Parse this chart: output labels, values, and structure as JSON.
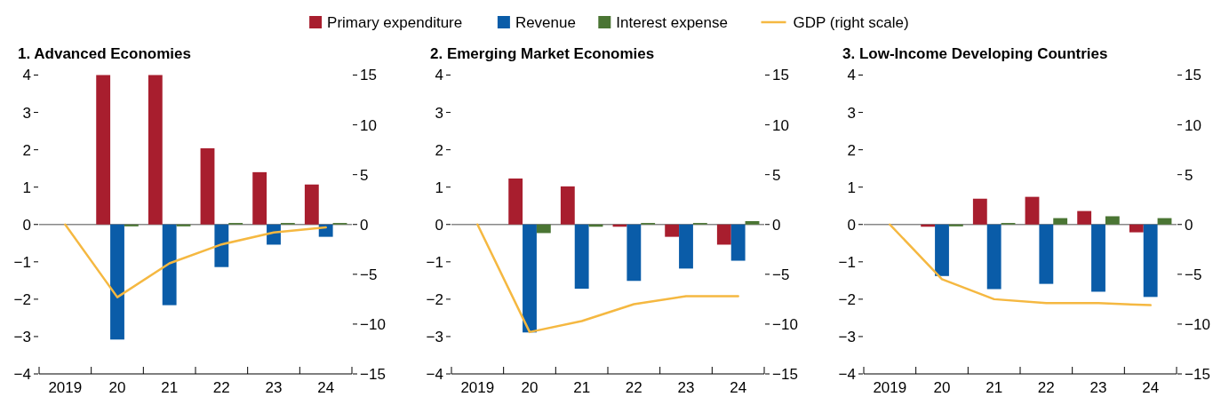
{
  "chart_data": [
    {
      "type": "bar",
      "title": "1. Advanced Economies",
      "categories": [
        "2019",
        "20",
        "21",
        "22",
        "23",
        "24"
      ],
      "legend": "top",
      "series": [
        {
          "name": "Primary expenditure",
          "color": "#a81e2e",
          "values": [
            null,
            4.0,
            4.0,
            2.04,
            1.4,
            1.07
          ]
        },
        {
          "name": "Revenue",
          "color": "#0a5ca8",
          "values": [
            null,
            -3.08,
            -2.16,
            -1.14,
            -0.54,
            -0.33
          ]
        },
        {
          "name": "Interest expense",
          "color": "#4a7533",
          "values": [
            null,
            -0.05,
            -0.05,
            0.04,
            0.04,
            0.04
          ]
        },
        {
          "name": "GDP (right scale)",
          "type": "line",
          "axis": "y2",
          "color": "#f5b841",
          "values": [
            0,
            -7.3,
            -3.9,
            -2.0,
            -0.8,
            -0.3
          ]
        }
      ],
      "ylim": [
        -4,
        4
      ],
      "yticks": [
        {
          "value": -4,
          "label": "−4"
        },
        {
          "value": -3,
          "label": "−3"
        },
        {
          "value": -2,
          "label": "−2"
        },
        {
          "value": -1,
          "label": "−1"
        },
        0,
        1,
        2,
        3,
        4
      ],
      "y2lim": [
        -15,
        15
      ],
      "y2ticks": [
        {
          "value": -15,
          "label": "−15"
        },
        {
          "value": -10,
          "label": "−10"
        },
        {
          "value": -5,
          "label": "−5"
        },
        0,
        5,
        10,
        15
      ]
    },
    {
      "type": "bar",
      "title": "2. Emerging Market Economies",
      "categories": [
        "2019",
        "20",
        "21",
        "22",
        "23",
        "24"
      ],
      "series": [
        {
          "color": "#a81e2e",
          "values": [
            null,
            1.23,
            1.02,
            -0.06,
            -0.33,
            -0.54
          ]
        },
        {
          "color": "#0a5ca8",
          "values": [
            null,
            -2.89,
            -1.72,
            -1.51,
            -1.18,
            -0.97
          ]
        },
        {
          "color": "#4a7533",
          "values": [
            null,
            -0.23,
            -0.06,
            0.04,
            0.04,
            0.09
          ]
        },
        {
          "type": "line",
          "axis": "y2",
          "color": "#f5b841",
          "values": [
            0,
            -10.8,
            -9.7,
            -8.0,
            -7.2,
            -7.2
          ]
        }
      ],
      "ylim": [
        -4,
        4
      ],
      "yticks": [
        {
          "value": -4,
          "label": "−4"
        },
        {
          "value": -3,
          "label": "−3"
        },
        {
          "value": -2,
          "label": "−2"
        },
        {
          "value": -1,
          "label": "−1"
        },
        0,
        1,
        2,
        3,
        4
      ],
      "y2lim": [
        -15,
        15
      ],
      "y2ticks": [
        {
          "value": -15,
          "label": "−15"
        },
        {
          "value": -10,
          "label": "−10"
        },
        {
          "value": -5,
          "label": "−5"
        },
        0,
        5,
        10,
        15
      ]
    },
    {
      "type": "bar",
      "title": "3. Low-Income Developing Countries",
      "categories": [
        "2019",
        "20",
        "21",
        "22",
        "23",
        "24"
      ],
      "series": [
        {
          "color": "#a81e2e",
          "values": [
            null,
            -0.06,
            0.69,
            0.74,
            0.36,
            -0.21
          ]
        },
        {
          "color": "#0a5ca8",
          "values": [
            null,
            -1.38,
            -1.73,
            -1.59,
            -1.8,
            -1.94
          ]
        },
        {
          "color": "#4a7533",
          "values": [
            null,
            -0.05,
            0.04,
            0.17,
            0.22,
            0.17
          ]
        },
        {
          "type": "line",
          "axis": "y2",
          "color": "#f5b841",
          "values": [
            0,
            -5.5,
            -7.5,
            -7.9,
            -7.9,
            -8.1
          ]
        }
      ],
      "ylim": [
        -4,
        4
      ],
      "yticks": [
        {
          "value": -4,
          "label": "−4"
        },
        {
          "value": -3,
          "label": "−3"
        },
        {
          "value": -2,
          "label": "−2"
        },
        {
          "value": -1,
          "label": "−1"
        },
        0,
        1,
        2,
        3,
        4
      ],
      "y2lim": [
        -15,
        15
      ],
      "y2ticks": [
        {
          "value": -15,
          "label": "−15"
        },
        {
          "value": -10,
          "label": "−10"
        },
        {
          "value": -5,
          "label": "−5"
        },
        0,
        5,
        10,
        15
      ]
    }
  ]
}
